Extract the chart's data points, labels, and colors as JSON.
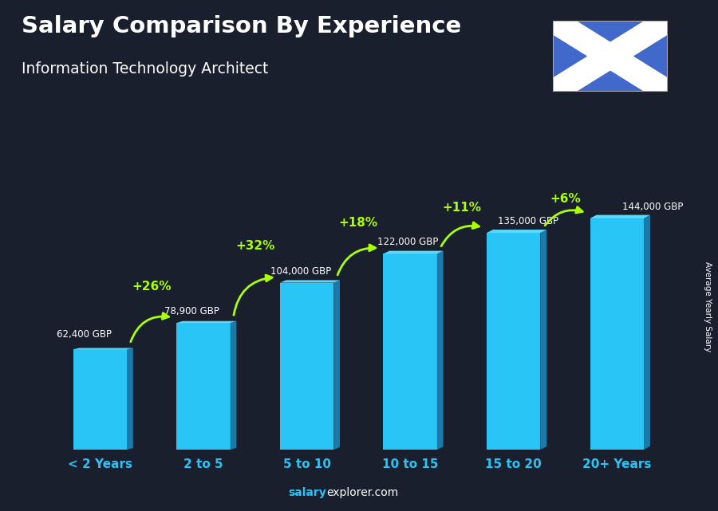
{
  "title": "Salary Comparison By Experience",
  "subtitle": "Information Technology Architect",
  "categories": [
    "< 2 Years",
    "2 to 5",
    "5 to 10",
    "10 to 15",
    "15 to 20",
    "20+ Years"
  ],
  "values": [
    62400,
    78900,
    104000,
    122000,
    135000,
    144000
  ],
  "labels": [
    "62,400 GBP",
    "78,900 GBP",
    "104,000 GBP",
    "122,000 GBP",
    "135,000 GBP",
    "144,000 GBP"
  ],
  "pct_changes": [
    "+26%",
    "+32%",
    "+18%",
    "+11%",
    "+6%"
  ],
  "bar_color": "#29c5f6",
  "bar_side_color": "#1a7aaa",
  "bar_top_color": "#5dd8f8",
  "background_color": "#1a1f2e",
  "title_color": "#ffffff",
  "subtitle_color": "#ffffff",
  "label_color": "#ffffff",
  "pct_color": "#aaff00",
  "xticklabel_color": "#29c5f6",
  "ylabel": "Average Yearly Salary",
  "ylabel_color": "#ffffff",
  "website_salary_color": "#29c5f6",
  "website_explorer_color": "#ffffff",
  "ylim_max": 175000,
  "bar_width": 0.52,
  "flag_bg_color": "#4169cb",
  "flag_cross_color": "#ffffff",
  "label_offsets": [
    [
      -0.42,
      6000,
      "left"
    ],
    [
      -0.38,
      4000,
      "left"
    ],
    [
      -0.35,
      4000,
      "left"
    ],
    [
      -0.32,
      4000,
      "left"
    ],
    [
      -0.15,
      4000,
      "left"
    ],
    [
      0.05,
      4000,
      "left"
    ]
  ],
  "arc_params": [
    [
      0,
      1,
      0.5,
      0.13,
      -0.42
    ],
    [
      1,
      2,
      0.5,
      0.13,
      -0.4
    ],
    [
      2,
      3,
      0.5,
      0.11,
      -0.38
    ],
    [
      3,
      4,
      0.5,
      0.09,
      -0.38
    ],
    [
      4,
      5,
      0.5,
      0.07,
      -0.36
    ]
  ]
}
